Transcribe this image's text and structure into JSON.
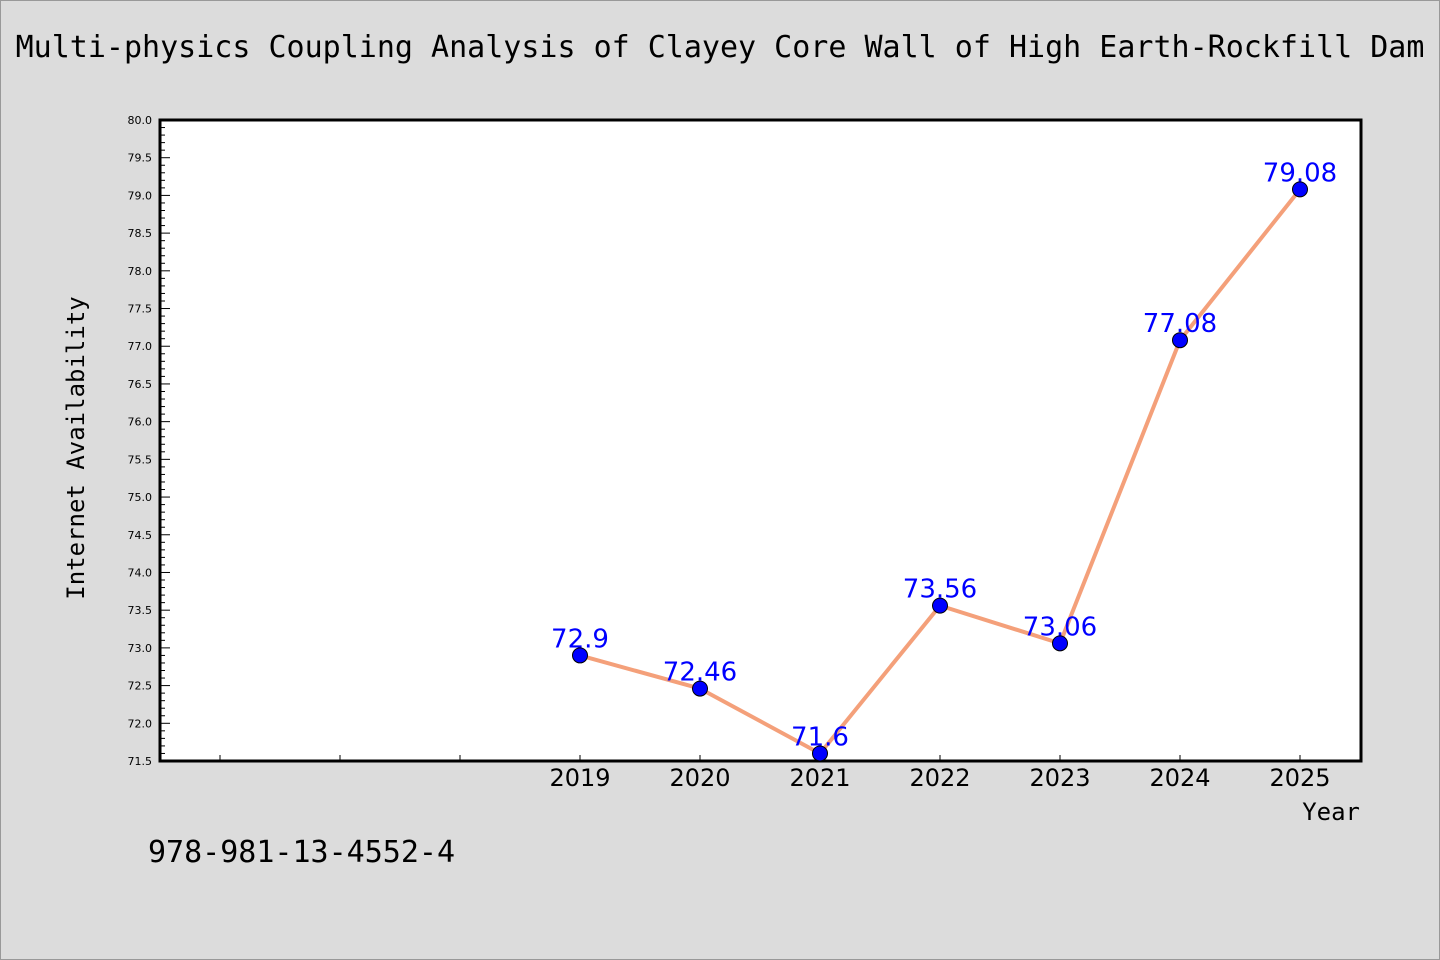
{
  "chart_data": {
    "type": "line",
    "title": "Multi-physics Coupling Analysis of Clayey Core Wall of High Earth-Rockfill Dam",
    "xlabel": "Year",
    "ylabel": "Internet Availability",
    "categories": [
      "2019",
      "2020",
      "2021",
      "2022",
      "2023",
      "2024",
      "2025"
    ],
    "series": [
      {
        "values": [
          72.9,
          72.46,
          71.6,
          73.56,
          73.06,
          77.08,
          79.08
        ],
        "data_labels": [
          "72.9",
          "72.46",
          "71.6",
          "73.56",
          "73.06",
          "77.08",
          "79.08"
        ]
      }
    ],
    "ylim": [
      71.5,
      80.0
    ],
    "yticks": [
      "71.5",
      "72.0",
      "72.5",
      "73.0",
      "73.5",
      "74.0",
      "74.5",
      "75.0",
      "75.5",
      "76.0",
      "76.5",
      "77.0",
      "77.5",
      "78.0",
      "78.5",
      "79.0",
      "79.5",
      "80.0"
    ],
    "grid": false,
    "line_color": "#f4a07a",
    "marker_color": "#0000ff",
    "label_color": "#0000ff"
  },
  "footer": {
    "isbn": "978-981-13-4552-4"
  }
}
